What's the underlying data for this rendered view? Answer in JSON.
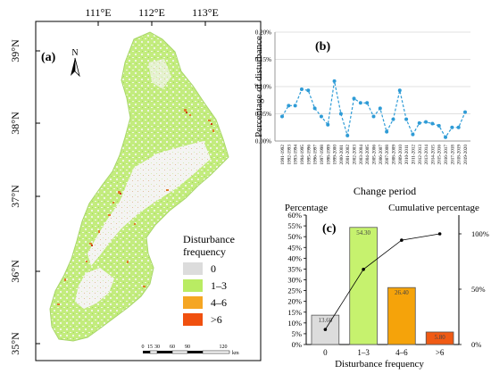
{
  "map": {
    "panel_label": "(a)",
    "lon_labels": [
      "111°E",
      "112°E",
      "113°E"
    ],
    "lat_labels": [
      "39°N",
      "38°N",
      "37°N",
      "36°N",
      "35°N"
    ],
    "north_label": "N",
    "legend_title_line1": "Disturbance",
    "legend_title_line2": "frequency",
    "legend_items": [
      {
        "label": "0",
        "color": "#dcdcdc"
      },
      {
        "label": "1–3",
        "color": "#b9ec63"
      },
      {
        "label": "4–6",
        "color": "#f5a623"
      },
      {
        "label": ">6",
        "color": "#f0500f"
      }
    ],
    "scale_ticks": [
      "0",
      "15",
      "30",
      "60",
      "90",
      "120"
    ],
    "scale_unit": "km"
  },
  "chart_b": {
    "panel_label": "(b)",
    "ylabel": "Percentage of disturbance",
    "xlabel": "Change period",
    "chart_data": {
      "type": "line",
      "categories": [
        "1991-1992",
        "1992-1993",
        "1993-1994",
        "1994-1995",
        "1995-1996",
        "1996-1997",
        "1997-1998",
        "1998-1999",
        "1999-2000",
        "2000-2001",
        "2001-2002",
        "2002-2003",
        "2003-2004",
        "2004-2005",
        "2005-2006",
        "2006-2007",
        "2007-2008",
        "2008-2009",
        "2009-2010",
        "2010-2011",
        "2011-2012",
        "2012-2013",
        "2013-2014",
        "2014-2015",
        "2015-2016",
        "2016-2017",
        "2017-2018",
        "2018-2019",
        "2019-2020"
      ],
      "values": [
        0.045,
        0.065,
        0.065,
        0.095,
        0.093,
        0.06,
        0.045,
        0.03,
        0.11,
        0.05,
        0.01,
        0.078,
        0.07,
        0.07,
        0.045,
        0.06,
        0.017,
        0.04,
        0.093,
        0.04,
        0.012,
        0.033,
        0.035,
        0.032,
        0.028,
        0.007,
        0.025,
        0.025,
        0.053
      ],
      "ylim": [
        0,
        0.2
      ],
      "yticks": [
        "0.00%",
        "0.05%",
        "0.10%",
        "0.15%",
        "0.20%"
      ],
      "color": "#2e9bd6"
    }
  },
  "chart_c": {
    "panel_label": "(c)",
    "left_title": "Percentage",
    "right_title": "Cumulative percentage",
    "xlabel": "Disturbance  frequency",
    "chart_data": {
      "type": "bar",
      "categories": [
        "0",
        "1–3",
        "4–6",
        ">6"
      ],
      "values": [
        13.6,
        54.3,
        26.4,
        5.8
      ],
      "value_labels": [
        "13.60",
        "54.30",
        "26.40",
        "5.80"
      ],
      "colors": [
        "#dcdcdc",
        "#c6f26e",
        "#f5a30a",
        "#f05a14"
      ],
      "cumulative": [
        13.6,
        67.9,
        94.3,
        100
      ],
      "ylim_left": [
        0,
        60
      ],
      "left_ticks": [
        "0%",
        "5%",
        "10%",
        "15%",
        "20%",
        "25%",
        "30%",
        "35%",
        "40%",
        "45%",
        "50%",
        "55%",
        "60%"
      ],
      "right_ticks": [
        "0%",
        "50%",
        "100%"
      ]
    }
  }
}
